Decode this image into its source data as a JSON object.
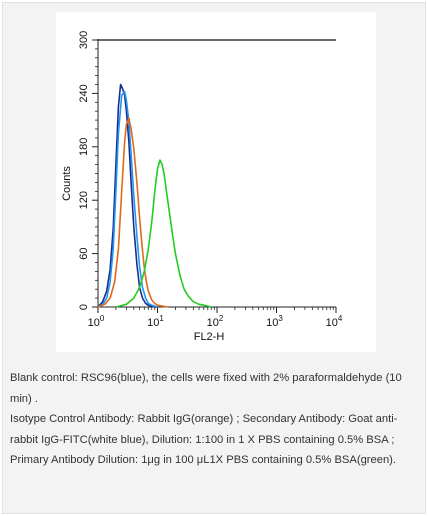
{
  "chart_data": {
    "type": "line",
    "title": "",
    "xlabel": "FL2-H",
    "ylabel": "Counts",
    "xscale": "log",
    "xlim": [
      1,
      10000
    ],
    "ylim": [
      0,
      300
    ],
    "x_ticks": [
      {
        "value": 1,
        "base": "10",
        "exp": "0"
      },
      {
        "value": 10,
        "base": "10",
        "exp": "1"
      },
      {
        "value": 100,
        "base": "10",
        "exp": "2"
      },
      {
        "value": 1000,
        "base": "10",
        "exp": "3"
      },
      {
        "value": 10000,
        "base": "10",
        "exp": "4"
      }
    ],
    "y_ticks": [
      "0",
      "60",
      "120",
      "180",
      "240",
      "300"
    ],
    "y_tick_values": [
      0,
      60,
      120,
      180,
      240,
      300
    ],
    "grid": false,
    "legend": "none",
    "series": [
      {
        "color": "#1a2f8c",
        "x": [
          1.0,
          1.2,
          1.4,
          1.6,
          1.8,
          2.0,
          2.2,
          2.4,
          2.6,
          2.8,
          3.0,
          3.3,
          3.6,
          4.0,
          4.5,
          5.0,
          5.6,
          6.3,
          7.0,
          8.0,
          9.0,
          10.0
        ],
        "y": [
          0,
          6,
          18,
          42,
          88,
          160,
          225,
          250,
          245,
          238,
          220,
          185,
          140,
          90,
          48,
          22,
          10,
          4,
          2,
          1,
          0,
          0
        ]
      },
      {
        "color": "#2196f3",
        "x": [
          1.0,
          1.2,
          1.4,
          1.6,
          1.8,
          2.0,
          2.2,
          2.5,
          2.8,
          3.0,
          3.3,
          3.6,
          4.0,
          4.5,
          5.0,
          5.6,
          6.3,
          7.0,
          8.0,
          9.0,
          10.0
        ],
        "y": [
          0,
          3,
          10,
          28,
          65,
          130,
          195,
          238,
          242,
          232,
          208,
          172,
          125,
          80,
          45,
          22,
          10,
          4,
          2,
          1,
          0
        ]
      },
      {
        "color": "#e06a1a",
        "x": [
          1.0,
          1.3,
          1.6,
          1.9,
          2.2,
          2.5,
          2.8,
          3.0,
          3.3,
          3.6,
          4.0,
          4.5,
          5.0,
          5.5,
          6.0,
          6.5,
          7.0,
          8.0,
          9.0,
          10.0,
          12.0,
          15.0
        ],
        "y": [
          0,
          3,
          10,
          28,
          65,
          130,
          185,
          205,
          212,
          200,
          178,
          140,
          100,
          68,
          44,
          28,
          18,
          8,
          4,
          2,
          1,
          0
        ]
      },
      {
        "color": "#22cc22",
        "x": [
          2.0,
          3.0,
          4.0,
          5.0,
          6.0,
          7.0,
          8.0,
          9.0,
          10.0,
          11.0,
          12.0,
          13.0,
          14.0,
          16.0,
          18.0,
          20.0,
          24.0,
          28.0,
          33.0,
          40.0,
          50.0,
          60.0,
          70.0,
          80.0
        ],
        "y": [
          0,
          3,
          10,
          22,
          40,
          65,
          95,
          130,
          155,
          165,
          160,
          148,
          132,
          105,
          80,
          60,
          35,
          20,
          12,
          6,
          3,
          2,
          1,
          0
        ]
      }
    ],
    "top_line_color": "#111111"
  },
  "caption": {
    "line1": "Blank control: RSC96(blue), the cells were fixed with 2% paraformaldehyde (10 min) .",
    "line2": "Isotype Control Antibody: Rabbit IgG(orange) ; Secondary Antibody: Goat anti-rabbit IgG-FITC(white blue), Dilution: 1:100 in 1 X PBS containing 0.5% BSA ; Primary Antibody Dilution: 1μg in 100 μL1X PBS containing 0.5% BSA(green)."
  }
}
